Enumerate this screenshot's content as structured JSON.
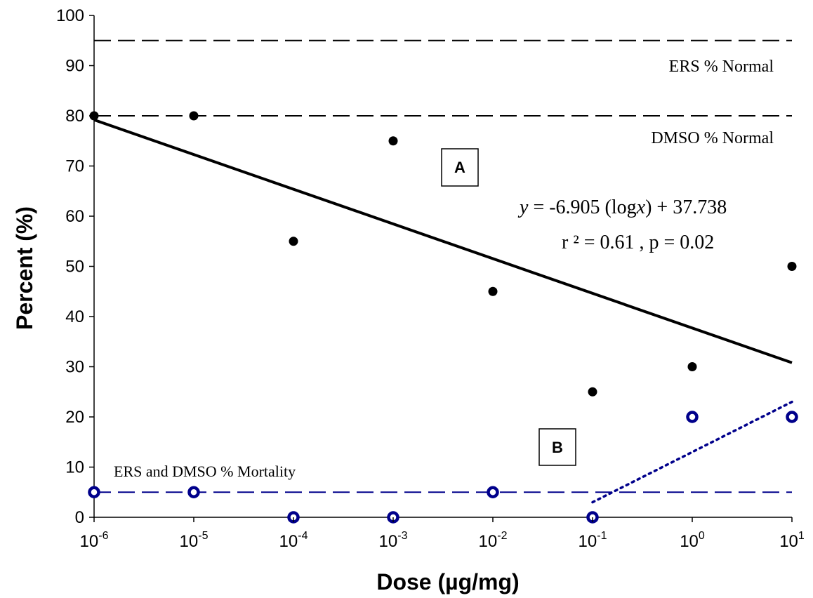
{
  "chart_data": {
    "type": "scatter",
    "xscale": "log",
    "x_ticks": [
      {
        "base": "10",
        "exp": "-6"
      },
      {
        "base": "10",
        "exp": "-5"
      },
      {
        "base": "10",
        "exp": "-4"
      },
      {
        "base": "10",
        "exp": "-3"
      },
      {
        "base": "10",
        "exp": "-2"
      },
      {
        "base": "10",
        "exp": "-1"
      },
      {
        "base": "10",
        "exp": "0"
      },
      {
        "base": "10",
        "exp": "1"
      }
    ],
    "y_ticks": [
      "0",
      "10",
      "20",
      "30",
      "40",
      "50",
      "60",
      "70",
      "80",
      "90",
      "100"
    ],
    "xlim": [
      1e-06,
      10
    ],
    "ylim": [
      0,
      100
    ],
    "xlabel": "Dose (µg/mg)",
    "ylabel": "Percent (%)",
    "grid": false,
    "series": [
      {
        "marker": "filled-circle",
        "color": "#000000",
        "x": [
          1e-06,
          1e-05,
          0.0001,
          0.001,
          0.01,
          0.1,
          1,
          10
        ],
        "y": [
          80,
          80,
          55,
          75,
          45,
          25,
          30,
          50
        ]
      },
      {
        "marker": "open-circle",
        "color": "#00008b",
        "x": [
          1e-06,
          1e-05,
          0.0001,
          0.001,
          0.01,
          0.1,
          1,
          10
        ],
        "y": [
          5,
          5,
          0,
          0,
          5,
          0,
          20,
          20
        ]
      }
    ],
    "reference_lines": [
      {
        "y": 95,
        "style": "dashed",
        "color": "#000000",
        "label": "ERS % Normal"
      },
      {
        "y": 80,
        "style": "dashed",
        "color": "#000000",
        "label": "DMSO % Normal"
      },
      {
        "y": 5,
        "style": "dashed",
        "color": "#00008b",
        "label": "ERS and DMSO % Mortality"
      }
    ],
    "trendlines": [
      {
        "style": "solid",
        "color": "#000000",
        "x": [
          1e-06,
          10
        ],
        "y": [
          79.2,
          30.8
        ]
      },
      {
        "style": "dotted",
        "color": "#00008b",
        "x": [
          0.1,
          10
        ],
        "y": [
          3,
          23
        ]
      }
    ],
    "annotations": {
      "box_a": "A",
      "box_b": "B",
      "equation_y": "y",
      "equation_rest": " = -6.905 (log",
      "equation_x": "x",
      "equation_end": ") + 37.738",
      "r2": "r ² = 0.61 , p = 0.02"
    }
  }
}
